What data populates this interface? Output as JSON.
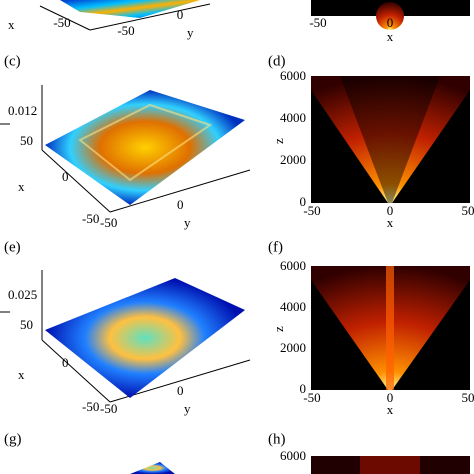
{
  "top": {
    "surface": {
      "x_label": "x",
      "x_tick": "-50",
      "y_ticks": [
        "-50",
        "0"
      ],
      "y_label": "y"
    },
    "heatmap": {
      "x_ticks": [
        "-50",
        "0"
      ],
      "x_label": "x"
    }
  },
  "panels": [
    {
      "label": "(c)",
      "z_tick": "0.012",
      "x_ticks": [
        "50",
        "0",
        "-50"
      ],
      "x_label": "x",
      "y_ticks": [
        "-50",
        "0"
      ],
      "y_label": "y"
    },
    {
      "label": "(d)",
      "z_ticks": [
        "6000",
        "4000",
        "2000",
        "0"
      ],
      "z_label": "z",
      "x_ticks": [
        "-50",
        "0",
        "50"
      ],
      "x_label": "x"
    },
    {
      "label": "(e)",
      "z_tick": "0.025",
      "x_ticks": [
        "50",
        "0",
        "-50"
      ],
      "x_label": "x",
      "y_ticks": [
        "-50",
        "0"
      ],
      "y_label": "y"
    },
    {
      "label": "(f)",
      "z_ticks": [
        "6000",
        "4000",
        "2000",
        "0"
      ],
      "z_label": "z",
      "x_ticks": [
        "-50",
        "0",
        "50"
      ],
      "x_label": "x"
    },
    {
      "label": "(g)"
    },
    {
      "label": "(h)",
      "z_ticks": [
        "6000"
      ]
    }
  ]
}
